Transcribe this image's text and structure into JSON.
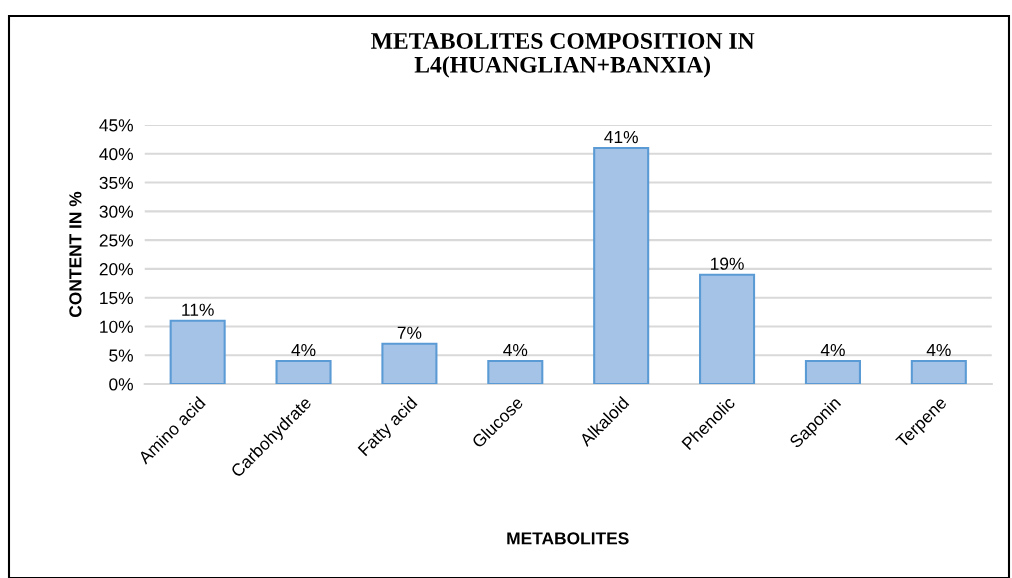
{
  "chart_data": {
    "type": "bar",
    "title": "METABOLITES COMPOSITION IN\nL4(HUANGLIAN+BANXIA)",
    "xlabel": "METABOLITES",
    "ylabel": "CONTENT IN %",
    "categories": [
      "Amino acid",
      "Carbohydrate",
      "Fatty acid",
      "Glucose",
      "Alkaloid",
      "Phenolic",
      "Saponin",
      "Terpene"
    ],
    "values": [
      11,
      4,
      7,
      4,
      41,
      19,
      4,
      4
    ],
    "value_labels": [
      "11%",
      "4%",
      "7%",
      "4%",
      "41%",
      "19%",
      "4%",
      "4%"
    ],
    "color": "#a5c2e7",
    "ylim": [
      0,
      45
    ],
    "yticks": [
      {
        "value": 0,
        "label": "0%"
      },
      {
        "value": 5,
        "label": "5%"
      },
      {
        "value": 10,
        "label": "10%"
      },
      {
        "value": 15,
        "label": "15%"
      },
      {
        "value": 20,
        "label": "20%"
      },
      {
        "value": 25,
        "label": "25%"
      },
      {
        "value": 30,
        "label": "30%"
      },
      {
        "value": 35,
        "label": "35%"
      },
      {
        "value": 40,
        "label": "40%"
      },
      {
        "value": 45,
        "label": "45%"
      }
    ],
    "grid": "y",
    "legend": false
  }
}
